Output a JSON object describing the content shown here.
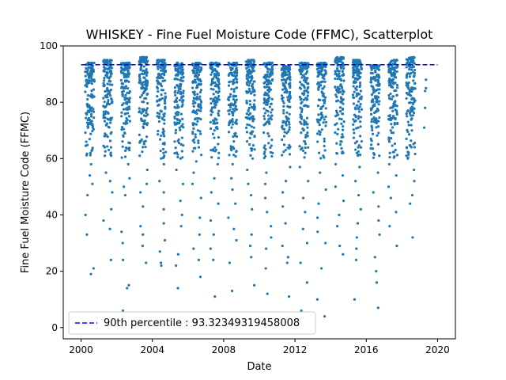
{
  "chart_data": {
    "type": "scatter",
    "title": "WHISKEY - Fine Fuel Moisture Code (FFMC), Scatterplot",
    "xlabel": "Date",
    "ylabel": "Fine Fuel Moisture Code (FFMC)",
    "xlim": [
      1999.0,
      2021.0
    ],
    "ylim": [
      -4.0,
      100.0
    ],
    "x_ticks": [
      "2000",
      "2004",
      "2008",
      "2012",
      "2016",
      "2020"
    ],
    "x_tick_values": [
      2000,
      2004,
      2008,
      2012,
      2016,
      2020
    ],
    "y_ticks": [
      "0",
      "20",
      "40",
      "60",
      "80",
      "100"
    ],
    "y_tick_values": [
      0,
      20,
      40,
      60,
      80,
      100
    ],
    "grid": false,
    "legend_position": "lower-left",
    "colors": {
      "points": "#1f77b4",
      "percentile_line": "#0000ff"
    },
    "series": [
      {
        "type": "scatter",
        "seasons": [
          {
            "start": 2000.23,
            "end": 2000.75,
            "top": 94,
            "lows": [
              19,
              21,
              33,
              40,
              47,
              51,
              54,
              58,
              62,
              66,
              71
            ]
          },
          {
            "start": 2001.25,
            "end": 2001.75,
            "top": 95,
            "lows": [
              24,
              35,
              38,
              42,
              48,
              52,
              55,
              61,
              64,
              68,
              72
            ]
          },
          {
            "start": 2002.25,
            "end": 2002.75,
            "top": 94,
            "lows": [
              6,
              14,
              15,
              24,
              30,
              34,
              47,
              50,
              53,
              58,
              63
            ]
          },
          {
            "start": 2003.25,
            "end": 2003.75,
            "top": 96,
            "lows": [
              23,
              29,
              33,
              36,
              43,
              48,
              51,
              56,
              61,
              66,
              72
            ]
          },
          {
            "start": 2004.25,
            "end": 2004.75,
            "top": 95,
            "lows": [
              22,
              23,
              27,
              31,
              37,
              42,
              48,
              52,
              58,
              62,
              68
            ]
          },
          {
            "start": 2005.25,
            "end": 2005.75,
            "top": 94,
            "lows": [
              14,
              22,
              26,
              36,
              40,
              45,
              51,
              56,
              60,
              65,
              71
            ]
          },
          {
            "start": 2006.25,
            "end": 2006.75,
            "top": 94,
            "lows": [
              18,
              24,
              28,
              33,
              39,
              46,
              51,
              55,
              59,
              64,
              70
            ]
          },
          {
            "start": 2007.25,
            "end": 2007.75,
            "top": 94,
            "lows": [
              11,
              24,
              28,
              33,
              38,
              44,
              48,
              53,
              58,
              63,
              70
            ]
          },
          {
            "start": 2008.25,
            "end": 2008.75,
            "top": 94,
            "lows": [
              13,
              23,
              31,
              35,
              39,
              44,
              49,
              53,
              58,
              63,
              69
            ]
          },
          {
            "start": 2009.25,
            "end": 2009.75,
            "top": 95,
            "lows": [
              15,
              25,
              29,
              33,
              42,
              47,
              51,
              56,
              60,
              65,
              71
            ]
          },
          {
            "start": 2010.25,
            "end": 2010.75,
            "top": 94,
            "lows": [
              12,
              21,
              28,
              32,
              36,
              41,
              46,
              51,
              55,
              62,
              68
            ]
          },
          {
            "start": 2011.25,
            "end": 2011.75,
            "top": 93,
            "lows": [
              11,
              23,
              25,
              29,
              37,
              43,
              48,
              52,
              57,
              63,
              69
            ]
          },
          {
            "start": 2012.25,
            "end": 2012.75,
            "top": 94,
            "lows": [
              6,
              16,
              23,
              30,
              35,
              41,
              46,
              52,
              57,
              62,
              68
            ]
          },
          {
            "start": 2013.25,
            "end": 2013.75,
            "top": 94,
            "lows": [
              4,
              10,
              21,
              30,
              34,
              39,
              44,
              49,
              55,
              61,
              67
            ]
          },
          {
            "start": 2014.25,
            "end": 2014.75,
            "top": 96,
            "lows": [
              26,
              29,
              36,
              40,
              45,
              50,
              54,
              58,
              62,
              66,
              72
            ]
          },
          {
            "start": 2015.25,
            "end": 2015.75,
            "top": 95,
            "lows": [
              10,
              24,
              28,
              32,
              37,
              42,
              47,
              52,
              57,
              62,
              68
            ]
          },
          {
            "start": 2016.25,
            "end": 2016.75,
            "top": 93,
            "lows": [
              7,
              16,
              20,
              25,
              33,
              38,
              43,
              48,
              55,
              61,
              67
            ]
          },
          {
            "start": 2017.25,
            "end": 2017.75,
            "top": 95,
            "lows": [
              29,
              36,
              41,
              46,
              50,
              54,
              58,
              62,
              66,
              70,
              74
            ]
          },
          {
            "start": 2018.25,
            "end": 2018.75,
            "top": 96,
            "lows": [
              32,
              44,
              47,
              52,
              56,
              60,
              64,
              67,
              70,
              73,
              76
            ]
          }
        ],
        "extra_points": [
          [
            2019.25,
            71
          ],
          [
            2019.3,
            78
          ],
          [
            2019.3,
            84
          ],
          [
            2019.35,
            85
          ],
          [
            2019.35,
            88
          ]
        ]
      }
    ],
    "reference_line": {
      "name": "90th percentile : 93.32349319458008",
      "y": 93.32349319458008,
      "x_range": [
        2000.0,
        2020.0
      ],
      "style": "dashed"
    }
  }
}
